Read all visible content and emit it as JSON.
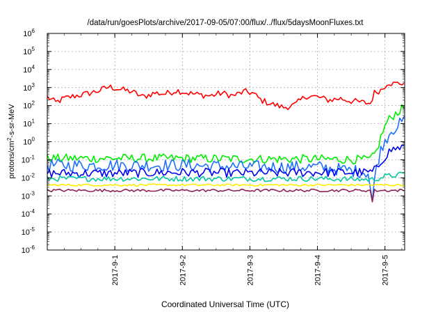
{
  "chart_data": {
    "type": "line",
    "title": "/data/run/goesPlots/archive/2017-09-05/07:00/flux/../flux/5daysMoonFluxes.txt",
    "xlabel": "Coordinated Universal Time (UTC)",
    "ylabel": {
      "base": "protons/cm",
      "sup": "2",
      "rest": "-s-sr-MeV"
    },
    "x_range": [
      "2017-08-31T00:00",
      "2017-09-05T07:00"
    ],
    "y_scale": "log",
    "ylim": [
      1e-06,
      1000000.0
    ],
    "grid": true,
    "legend": "none",
    "x_ticks": [
      {
        "t": "2017-09-01T00:00",
        "label": "2017-9-1"
      },
      {
        "t": "2017-09-02T00:00",
        "label": "2017-9-2"
      },
      {
        "t": "2017-09-03T00:00",
        "label": "2017-9-3"
      },
      {
        "t": "2017-09-04T00:00",
        "label": "2017-9-4"
      },
      {
        "t": "2017-09-05T00:00",
        "label": "2017-9-5"
      }
    ],
    "y_ticks": [
      {
        "v": 1e-06,
        "base": "10",
        "exp": "-6"
      },
      {
        "v": 1e-05,
        "base": "10",
        "exp": "-5"
      },
      {
        "v": 0.0001,
        "base": "10",
        "exp": "-4"
      },
      {
        "v": 0.001,
        "base": "10",
        "exp": "-3"
      },
      {
        "v": 0.01,
        "base": "10",
        "exp": "-2"
      },
      {
        "v": 0.1,
        "base": "10",
        "exp": "-1"
      },
      {
        "v": 1,
        "base": "10",
        "exp": "0"
      },
      {
        "v": 10,
        "base": "10",
        "exp": "1"
      },
      {
        "v": 100,
        "base": "10",
        "exp": "2"
      },
      {
        "v": 1000,
        "base": "10",
        "exp": "3"
      },
      {
        "v": 10000,
        "base": "10",
        "exp": "4"
      },
      {
        "v": 100000,
        "base": "10",
        "exp": "5"
      },
      {
        "v": 1000000,
        "base": "10",
        "exp": "6"
      }
    ],
    "series": [
      {
        "color": "#ff0000",
        "noise": 0.35,
        "points": [
          [
            "2017-08-31T00:00",
            300
          ],
          [
            "2017-08-31T03:00",
            150
          ],
          [
            "2017-08-31T06:00",
            250
          ],
          [
            "2017-08-31T10:00",
            350
          ],
          [
            "2017-08-31T14:00",
            450
          ],
          [
            "2017-08-31T18:00",
            650
          ],
          [
            "2017-08-31T22:00",
            1100
          ],
          [
            "2017-09-01T02:00",
            800
          ],
          [
            "2017-09-01T06:00",
            600
          ],
          [
            "2017-09-01T10:00",
            300
          ],
          [
            "2017-09-01T14:00",
            500
          ],
          [
            "2017-09-01T18:00",
            450
          ],
          [
            "2017-09-01T22:00",
            700
          ],
          [
            "2017-09-02T02:00",
            500
          ],
          [
            "2017-09-02T06:00",
            400
          ],
          [
            "2017-09-02T10:00",
            350
          ],
          [
            "2017-09-02T14:00",
            500
          ],
          [
            "2017-09-02T18:00",
            350
          ],
          [
            "2017-09-02T22:00",
            600
          ],
          [
            "2017-09-03T01:00",
            500
          ],
          [
            "2017-09-03T04:00",
            200
          ],
          [
            "2017-09-03T08:00",
            120
          ],
          [
            "2017-09-03T12:00",
            80
          ],
          [
            "2017-09-03T16:00",
            110
          ],
          [
            "2017-09-03T20:00",
            350
          ],
          [
            "2017-09-04T00:00",
            300
          ],
          [
            "2017-09-04T04:00",
            200
          ],
          [
            "2017-09-04T08:00",
            250
          ],
          [
            "2017-09-04T12:00",
            180
          ],
          [
            "2017-09-04T16:00",
            150
          ],
          [
            "2017-09-04T19:00",
            130
          ],
          [
            "2017-09-04T20:00",
            500
          ],
          [
            "2017-09-04T23:00",
            800
          ],
          [
            "2017-09-05T01:00",
            2000
          ],
          [
            "2017-09-05T03:00",
            1600
          ],
          [
            "2017-09-05T07:00",
            1800
          ]
        ]
      },
      {
        "color": "#00ee00",
        "noise": 0.5,
        "points": [
          [
            "2017-08-31T00:00",
            0.12
          ],
          [
            "2017-09-01T00:00",
            0.12
          ],
          [
            "2017-09-02T00:00",
            0.12
          ],
          [
            "2017-09-03T00:00",
            0.11
          ],
          [
            "2017-09-04T00:00",
            0.11
          ],
          [
            "2017-09-04T19:00",
            0.1
          ],
          [
            "2017-09-04T21:00",
            0.3
          ],
          [
            "2017-09-04T23:00",
            3
          ],
          [
            "2017-09-05T01:00",
            15
          ],
          [
            "2017-09-05T04:00",
            40
          ],
          [
            "2017-09-05T07:00",
            80
          ]
        ]
      },
      {
        "color": "#1e6fff",
        "noise": 0.7,
        "points": [
          [
            "2017-08-31T00:00",
            0.05
          ],
          [
            "2017-09-01T00:00",
            0.05
          ],
          [
            "2017-09-02T00:00",
            0.05
          ],
          [
            "2017-09-03T00:00",
            0.04
          ],
          [
            "2017-09-04T00:00",
            0.04
          ],
          [
            "2017-09-04T18:00",
            0.02
          ],
          [
            "2017-09-04T19:30",
            0.0005
          ],
          [
            "2017-09-04T21:00",
            0.05
          ],
          [
            "2017-09-04T23:00",
            0.6
          ],
          [
            "2017-09-05T02:00",
            4
          ],
          [
            "2017-09-05T07:00",
            15
          ]
        ]
      },
      {
        "color": "#0000ee",
        "noise": 0.5,
        "points": [
          [
            "2017-08-31T00:00",
            0.018
          ],
          [
            "2017-09-01T00:00",
            0.018
          ],
          [
            "2017-09-02T00:00",
            0.02
          ],
          [
            "2017-09-03T00:00",
            0.018
          ],
          [
            "2017-09-04T00:00",
            0.02
          ],
          [
            "2017-09-04T19:00",
            0.02
          ],
          [
            "2017-09-04T21:00",
            0.03
          ],
          [
            "2017-09-04T23:00",
            0.1
          ],
          [
            "2017-09-05T02:00",
            0.35
          ],
          [
            "2017-09-05T07:00",
            0.55
          ]
        ]
      },
      {
        "color": "#00c8a0",
        "noise": 0.3,
        "points": [
          [
            "2017-08-31T00:00",
            0.009
          ],
          [
            "2017-09-01T00:00",
            0.009
          ],
          [
            "2017-09-02T00:00",
            0.009
          ],
          [
            "2017-09-03T00:00",
            0.009
          ],
          [
            "2017-09-04T00:00",
            0.009
          ],
          [
            "2017-09-04T20:00",
            0.008
          ],
          [
            "2017-09-05T00:00",
            0.012
          ],
          [
            "2017-09-05T07:00",
            0.016
          ]
        ]
      },
      {
        "color": "#ffee00",
        "noise": 0.12,
        "points": [
          [
            "2017-08-31T00:00",
            0.004
          ],
          [
            "2017-09-02T00:00",
            0.004
          ],
          [
            "2017-09-04T00:00",
            0.004
          ],
          [
            "2017-09-05T07:00",
            0.004
          ]
        ]
      },
      {
        "color": "#8b2252",
        "noise": 0.15,
        "points": [
          [
            "2017-08-31T00:00",
            0.002
          ],
          [
            "2017-09-02T00:00",
            0.002
          ],
          [
            "2017-09-04T00:00",
            0.002
          ],
          [
            "2017-09-04T19:00",
            0.002
          ],
          [
            "2017-09-04T19:30",
            0.0005
          ],
          [
            "2017-09-04T20:00",
            0.002
          ],
          [
            "2017-09-05T07:00",
            0.002
          ]
        ]
      }
    ]
  }
}
